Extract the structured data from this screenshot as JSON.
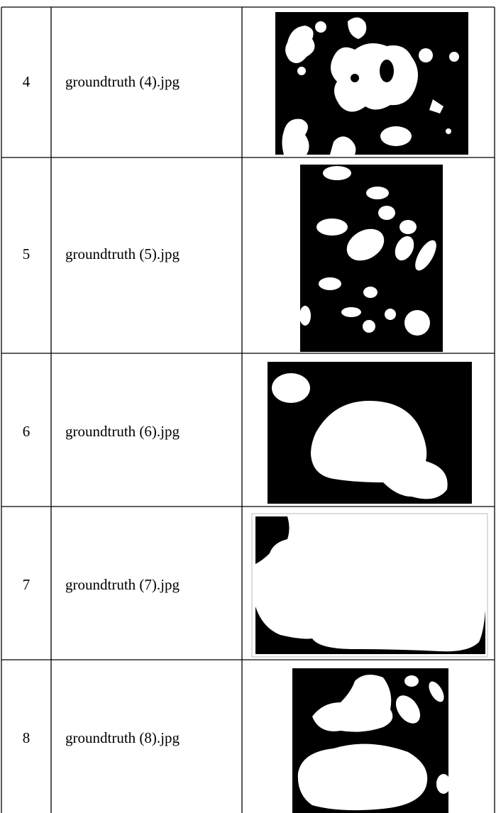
{
  "table": {
    "rows": [
      [
        "4",
        "groundtruth (4).jpg"
      ],
      [
        "5",
        "groundtruth (5).jpg"
      ],
      [
        "6",
        "groundtruth (6).jpg"
      ],
      [
        "7",
        "groundtruth (7).jpg"
      ],
      [
        "8",
        "groundtruth (8).jpg"
      ]
    ]
  }
}
